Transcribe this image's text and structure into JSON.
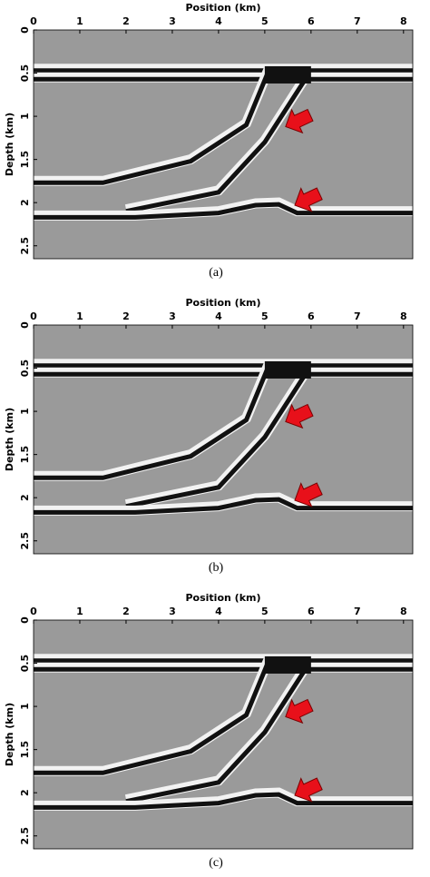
{
  "panels": [
    {
      "x_label": "Position (km)",
      "y_label": "Depth (km)",
      "xlim": [
        0,
        8.2
      ],
      "ylim": [
        0,
        2.65
      ],
      "xticks": [
        0,
        1,
        2,
        3,
        4,
        5,
        6,
        7,
        8
      ],
      "yticks": [
        0,
        0.5,
        1,
        1.5,
        2,
        2.5
      ],
      "caption": "(a)"
    },
    {
      "x_label": "Position (km)",
      "y_label": "Depth (km)",
      "xlim": [
        0,
        8.2
      ],
      "ylim": [
        0,
        2.65
      ],
      "xticks": [
        0,
        1,
        2,
        3,
        4,
        5,
        6,
        7,
        8
      ],
      "yticks": [
        0,
        0.5,
        1,
        1.5,
        2,
        2.5
      ],
      "caption": "(b)"
    },
    {
      "x_label": "Position (km)",
      "y_label": "Depth (km)",
      "xlim": [
        0,
        8.2
      ],
      "ylim": [
        0,
        2.65
      ],
      "xticks": [
        0,
        1,
        2,
        3,
        4,
        5,
        6,
        7,
        8
      ],
      "yticks": [
        0,
        0.5,
        1,
        1.5,
        2,
        2.5
      ],
      "caption": "(c)"
    }
  ]
}
